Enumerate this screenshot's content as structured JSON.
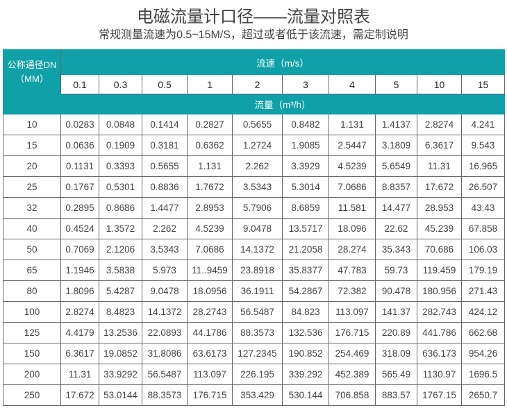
{
  "title": "电磁流量计口径——流量对照表",
  "subtitle": "常规测量流速为0.5~15M/S，超过或者低于该流速，需定制说明",
  "colors": {
    "header": "#0fa0a8",
    "text": "#444444",
    "border": "#666666"
  },
  "table": {
    "dn_header_line1": "公称通径DN",
    "dn_header_line2": "（MM）",
    "velocity_header": "流速（m/s）",
    "flow_header": "流量（m³/h）",
    "velocities": [
      "0.1",
      "0.3",
      "0.5",
      "1",
      "2",
      "3",
      "4",
      "5",
      "10",
      "15"
    ],
    "rows": [
      {
        "dn": "10",
        "values": [
          "0.0283",
          "0.0848",
          "0.1414",
          "0.2827",
          "0.5655",
          "0.8482",
          "1.131",
          "1.4137",
          "2.8274",
          "4.241"
        ]
      },
      {
        "dn": "15",
        "values": [
          "0.0636",
          "0.1909",
          "0.3181",
          "0.6362",
          "1.2724",
          "1.9085",
          "2.5447",
          "3.1809",
          "6.3617",
          "9.543"
        ]
      },
      {
        "dn": "20",
        "values": [
          "0.1131",
          "0.3393",
          "0.5655",
          "1.131",
          "2.262",
          "3.3929",
          "4.5239",
          "5.6549",
          "11.31",
          "16.965"
        ]
      },
      {
        "dn": "25",
        "values": [
          "0.1767",
          "0.5301",
          "0.8836",
          "1.7672",
          "3.5343",
          "5.3014",
          "7.0686",
          "8.8357",
          "17.672",
          "26.507"
        ]
      },
      {
        "dn": "32",
        "values": [
          "0.2895",
          "0.8686",
          "1.4477",
          "2.8953",
          "5.7906",
          "8.6859",
          "11.581",
          "14.477",
          "28.953",
          "43.43"
        ]
      },
      {
        "dn": "40",
        "values": [
          "0.4524",
          "1.3572",
          "2.262",
          "4.5239",
          "9.0478",
          "13.5717",
          "18.096",
          "22.62",
          "45.239",
          "67.858"
        ]
      },
      {
        "dn": "50",
        "values": [
          "0.7069",
          "2.1206",
          "3.5343",
          "7.0686",
          "14.1372",
          "21.2058",
          "28.274",
          "35.343",
          "70.686",
          "106.03"
        ]
      },
      {
        "dn": "65",
        "values": [
          "1.1946",
          "3.5838",
          "5.973",
          "11..9459",
          "23.8918",
          "35.8377",
          "47.783",
          "59.73",
          "119.459",
          "179.19"
        ]
      },
      {
        "dn": "80",
        "values": [
          "1.8096",
          "5.4287",
          "9.0478",
          "18.0956",
          "36.1911",
          "54.2867",
          "72.382",
          "90.478",
          "180.956",
          "271.43"
        ]
      },
      {
        "dn": "100",
        "values": [
          "2.8274",
          "8.4823",
          "14.1372",
          "28.2743",
          "56.5487",
          "84.823",
          "113.097",
          "141.37",
          "282.743",
          "424.12"
        ]
      },
      {
        "dn": "125",
        "values": [
          "4.4179",
          "13.2536",
          "22.0893",
          "44.1786",
          "88.3573",
          "132.536",
          "176.715",
          "220.89",
          "441.786",
          "662.68"
        ]
      },
      {
        "dn": "150",
        "values": [
          "6.3617",
          "19.0852",
          "31.8086",
          "63.6173",
          "127.2345",
          "190.852",
          "254.469",
          "318.09",
          "636.173",
          "954.26"
        ]
      },
      {
        "dn": "200",
        "values": [
          "11.31",
          "33.9292",
          "56.5487",
          "113.097",
          "226.195",
          "339.292",
          "452.389",
          "565.49",
          "1130.97",
          "1696.5"
        ]
      },
      {
        "dn": "250",
        "values": [
          "17.672",
          "53.0144",
          "88.3573",
          "176.715",
          "353.429",
          "530.144",
          "706.858",
          "883.57",
          "1767.15",
          "2650.7"
        ]
      }
    ]
  }
}
